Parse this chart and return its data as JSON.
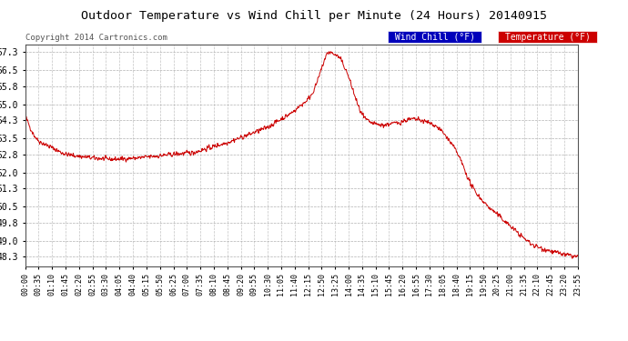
{
  "title": "Outdoor Temperature vs Wind Chill per Minute (24 Hours) 20140915",
  "copyright": "Copyright 2014 Cartronics.com",
  "legend_wind_chill": "Wind Chill (°F)",
  "legend_temperature": "Temperature (°F)",
  "line_color": "#cc0000",
  "background_color": "#ffffff",
  "plot_bg_color": "#ffffff",
  "grid_color": "#aaaaaa",
  "ylim": [
    47.9,
    57.65
  ],
  "yticks": [
    48.3,
    49.0,
    49.8,
    50.5,
    51.3,
    52.0,
    52.8,
    53.5,
    54.3,
    55.0,
    55.8,
    56.5,
    57.3
  ],
  "xtick_labels": [
    "00:00",
    "00:35",
    "01:10",
    "01:45",
    "02:20",
    "02:55",
    "03:30",
    "04:05",
    "04:40",
    "05:15",
    "05:50",
    "06:25",
    "07:00",
    "07:35",
    "08:10",
    "08:45",
    "09:20",
    "09:55",
    "10:30",
    "11:05",
    "11:40",
    "12:15",
    "12:50",
    "13:25",
    "14:00",
    "14:35",
    "15:10",
    "15:45",
    "16:20",
    "16:55",
    "17:30",
    "18:05",
    "18:40",
    "19:15",
    "19:50",
    "20:25",
    "21:00",
    "21:35",
    "22:10",
    "22:45",
    "23:20",
    "23:55"
  ],
  "num_points": 1440,
  "wind_chill_color": "#0000cc",
  "temp_legend_color": "#cc0000"
}
